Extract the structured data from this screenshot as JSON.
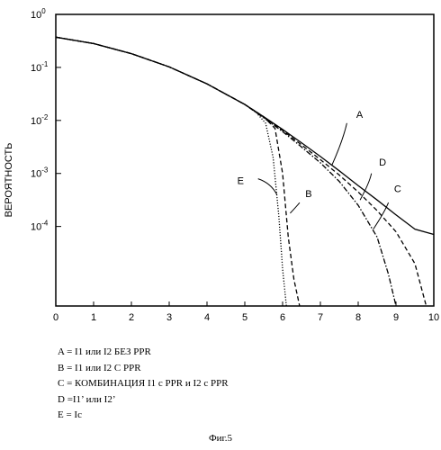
{
  "chart_data": {
    "type": "line",
    "ylabel": "ВЕРОЯТНОСТЬ",
    "xlim": [
      0,
      10
    ],
    "ylim_log10": [
      -5.5,
      0
    ],
    "y_scale": "log",
    "x_ticks": [
      "0",
      "1",
      "2",
      "3",
      "4",
      "5",
      "6",
      "7",
      "8",
      "9",
      "10"
    ],
    "y_ticks": [
      {
        "base": "10",
        "exp": "0",
        "value": 0
      },
      {
        "base": "10",
        "exp": "-1",
        "value": -1
      },
      {
        "base": "10",
        "exp": "-2",
        "value": -2
      },
      {
        "base": "10",
        "exp": "-3",
        "value": -3
      },
      {
        "base": "10",
        "exp": "-4",
        "value": -4
      }
    ],
    "series": [
      {
        "name": "A",
        "style": "solid",
        "x": [
          0,
          1,
          2,
          3,
          4,
          5,
          5.5,
          6,
          6.5,
          7,
          7.5,
          8,
          8.5,
          9,
          9.5,
          10
        ],
        "y_log10": [
          -0.43,
          -0.55,
          -0.74,
          -0.99,
          -1.31,
          -1.7,
          -1.93,
          -2.17,
          -2.42,
          -2.68,
          -2.95,
          -3.23,
          -3.5,
          -3.78,
          -4.05,
          -4.15
        ]
      },
      {
        "name": "B",
        "style": "dashed",
        "x": [
          0,
          1,
          2,
          3,
          4,
          5,
          5.5,
          5.8,
          6.0,
          6.15,
          6.3,
          6.45
        ],
        "y_log10": [
          -0.43,
          -0.55,
          -0.74,
          -0.99,
          -1.31,
          -1.7,
          -1.93,
          -2.15,
          -3.0,
          -4.2,
          -5.0,
          -5.5
        ]
      },
      {
        "name": "C",
        "style": "dash-dot",
        "x": [
          0,
          1,
          2,
          3,
          4,
          5,
          5.5,
          6,
          6.5,
          7,
          7.5,
          8,
          8.5,
          8.8,
          9.0
        ],
        "y_log10": [
          -0.43,
          -0.55,
          -0.74,
          -0.99,
          -1.31,
          -1.7,
          -1.95,
          -2.21,
          -2.5,
          -2.8,
          -3.15,
          -3.6,
          -4.2,
          -4.9,
          -5.5
        ]
      },
      {
        "name": "D",
        "style": "dashed",
        "x": [
          0,
          1,
          2,
          3,
          4,
          5,
          5.5,
          6,
          6.5,
          7,
          7.5,
          8,
          8.5,
          9,
          9.5,
          9.8
        ],
        "y_log10": [
          -0.43,
          -0.55,
          -0.74,
          -0.99,
          -1.31,
          -1.7,
          -1.94,
          -2.19,
          -2.46,
          -2.74,
          -3.03,
          -3.35,
          -3.7,
          -4.1,
          -4.7,
          -5.5
        ]
      },
      {
        "name": "E",
        "style": "dotted",
        "x": [
          0,
          1,
          2,
          3,
          4,
          5,
          5.3,
          5.55,
          5.75,
          5.9,
          6.0,
          6.1
        ],
        "y_log10": [
          -0.43,
          -0.55,
          -0.74,
          -0.99,
          -1.31,
          -1.7,
          -1.85,
          -2.05,
          -2.7,
          -3.8,
          -4.8,
          -5.5
        ]
      }
    ],
    "callouts": [
      "A",
      "B",
      "C",
      "D",
      "E"
    ]
  },
  "legend_lines": [
    "A = I1 или I2 БЕЗ PPR",
    "B = I1  или I2 С PPR",
    "C = КОМБИНАЦИЯ I1 с PPR и I2 с PPR",
    "D =I1’ или I2’",
    "E = Ic"
  ],
  "caption": "Фиг.5"
}
